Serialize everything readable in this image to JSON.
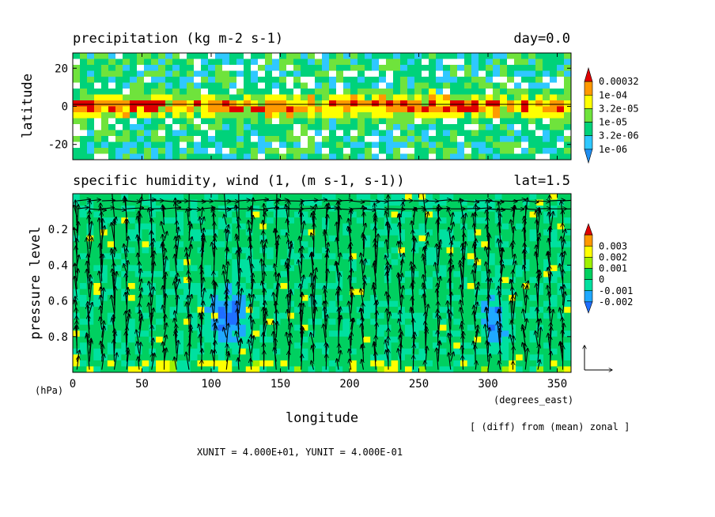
{
  "chart_data": [
    {
      "type": "heatmap",
      "title": "precipitation (kg m-2 s-1)",
      "subtitle": "day=0.0",
      "ylabel": "latitude",
      "xlim": [
        0,
        360
      ],
      "ylim": [
        -28,
        28
      ],
      "yticks": [
        -20,
        0,
        20
      ],
      "legend": "right",
      "colorbar": {
        "labels": [
          "1e-06",
          "3.2e-06",
          "1e-05",
          "3.2e-05",
          "1e-04",
          "0.00032"
        ],
        "colors": [
          "#1f8ef0",
          "#2fc8ff",
          "#00d27a",
          "#6fe33c",
          "#ffff00",
          "#ff9900",
          "#e00000"
        ]
      },
      "reference_line": {
        "axis": "y",
        "value": 0
      },
      "notes": "ITCZ band of high values near the equator with red maxima"
    },
    {
      "type": "heatmap",
      "title": "specific humidity, wind (1, (m s-1, s-1))",
      "subtitle": "lat=1.5",
      "xlabel": "longitude",
      "ylabel": "pressure level",
      "xunit": "(degrees_east)",
      "yunit": "(hPa)",
      "xlim": [
        0,
        360
      ],
      "ylim": [
        1.0,
        0.0
      ],
      "xticks": [
        0,
        50,
        100,
        150,
        200,
        250,
        300,
        350
      ],
      "yticks": [
        0.2,
        0.4,
        0.6,
        0.8
      ],
      "legend": "right",
      "colorbar": {
        "labels": [
          "-0.002",
          "-0.001",
          "0",
          "0.001",
          "0.002",
          "0.003"
        ],
        "colors": [
          "#1f6fff",
          "#1fa8ff",
          "#00e0a0",
          "#00d060",
          "#a0f000",
          "#ffff00",
          "#ff9900",
          "#e00000"
        ]
      },
      "overlay": "wind vectors",
      "note": "[ (diff) from (mean) zonal ]",
      "unit_footer": "XUNIT = 4.000E+01, YUNIT = 4.000E-01"
    }
  ]
}
